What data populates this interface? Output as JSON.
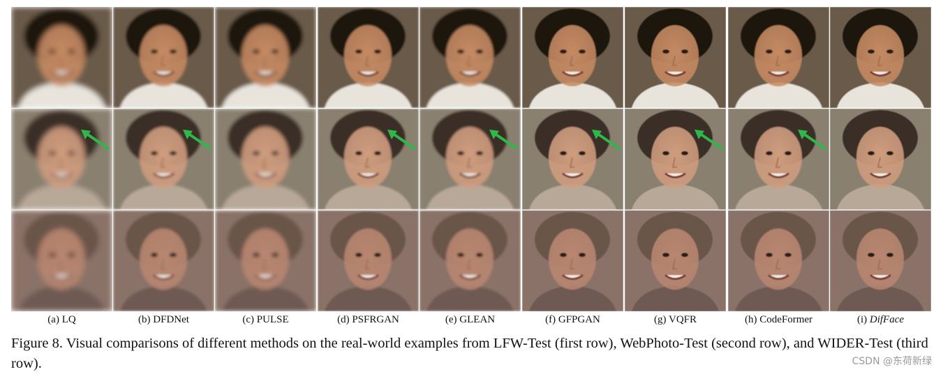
{
  "figure": {
    "caption": "Figure 8. Visual comparisons of different methods on the real-world examples from LFW-Test (first row), WebPhoto-Test (second row), and WIDER-Test (third row).",
    "columns": [
      {
        "letter": "(a)",
        "method": "LQ",
        "italic": false,
        "sharpness": 0.1
      },
      {
        "letter": "(b)",
        "method": "DFDNet",
        "italic": false,
        "sharpness": 0.55
      },
      {
        "letter": "(c)",
        "method": "PULSE",
        "italic": false,
        "sharpness": 0.35
      },
      {
        "letter": "(d)",
        "method": "PSFRGAN",
        "italic": false,
        "sharpness": 0.7
      },
      {
        "letter": "(e)",
        "method": "GLEAN",
        "italic": false,
        "sharpness": 0.6
      },
      {
        "letter": "(f)",
        "method": "GFPGAN",
        "italic": false,
        "sharpness": 0.8
      },
      {
        "letter": "(g)",
        "method": "VQFR",
        "italic": false,
        "sharpness": 0.85
      },
      {
        "letter": "(h)",
        "method": "CodeFormer",
        "italic": false,
        "sharpness": 0.8
      },
      {
        "letter": "(i)",
        "method": "DifFace",
        "italic": true,
        "sharpness": 0.9
      }
    ],
    "rows": [
      {
        "dataset": "LFW-Test",
        "skin": "#c58a62",
        "hair": "#1a1410",
        "bg": "#6a5a48",
        "shirt": "#e8e4dc",
        "arrow": false
      },
      {
        "dataset": "WebPhoto-Test",
        "skin": "#cf9c7e",
        "hair": "#3a2e28",
        "bg": "#8a8070",
        "shirt": "#b8a898",
        "arrow": true
      },
      {
        "dataset": "WIDER-Test",
        "skin": "#b88670",
        "hair": "#6a5548",
        "bg": "#8a7268",
        "shirt": "#6e5a52",
        "arrow": false
      }
    ],
    "arrow_color": "#2fb84a"
  },
  "watermark": "CSDN @东荷新绿"
}
